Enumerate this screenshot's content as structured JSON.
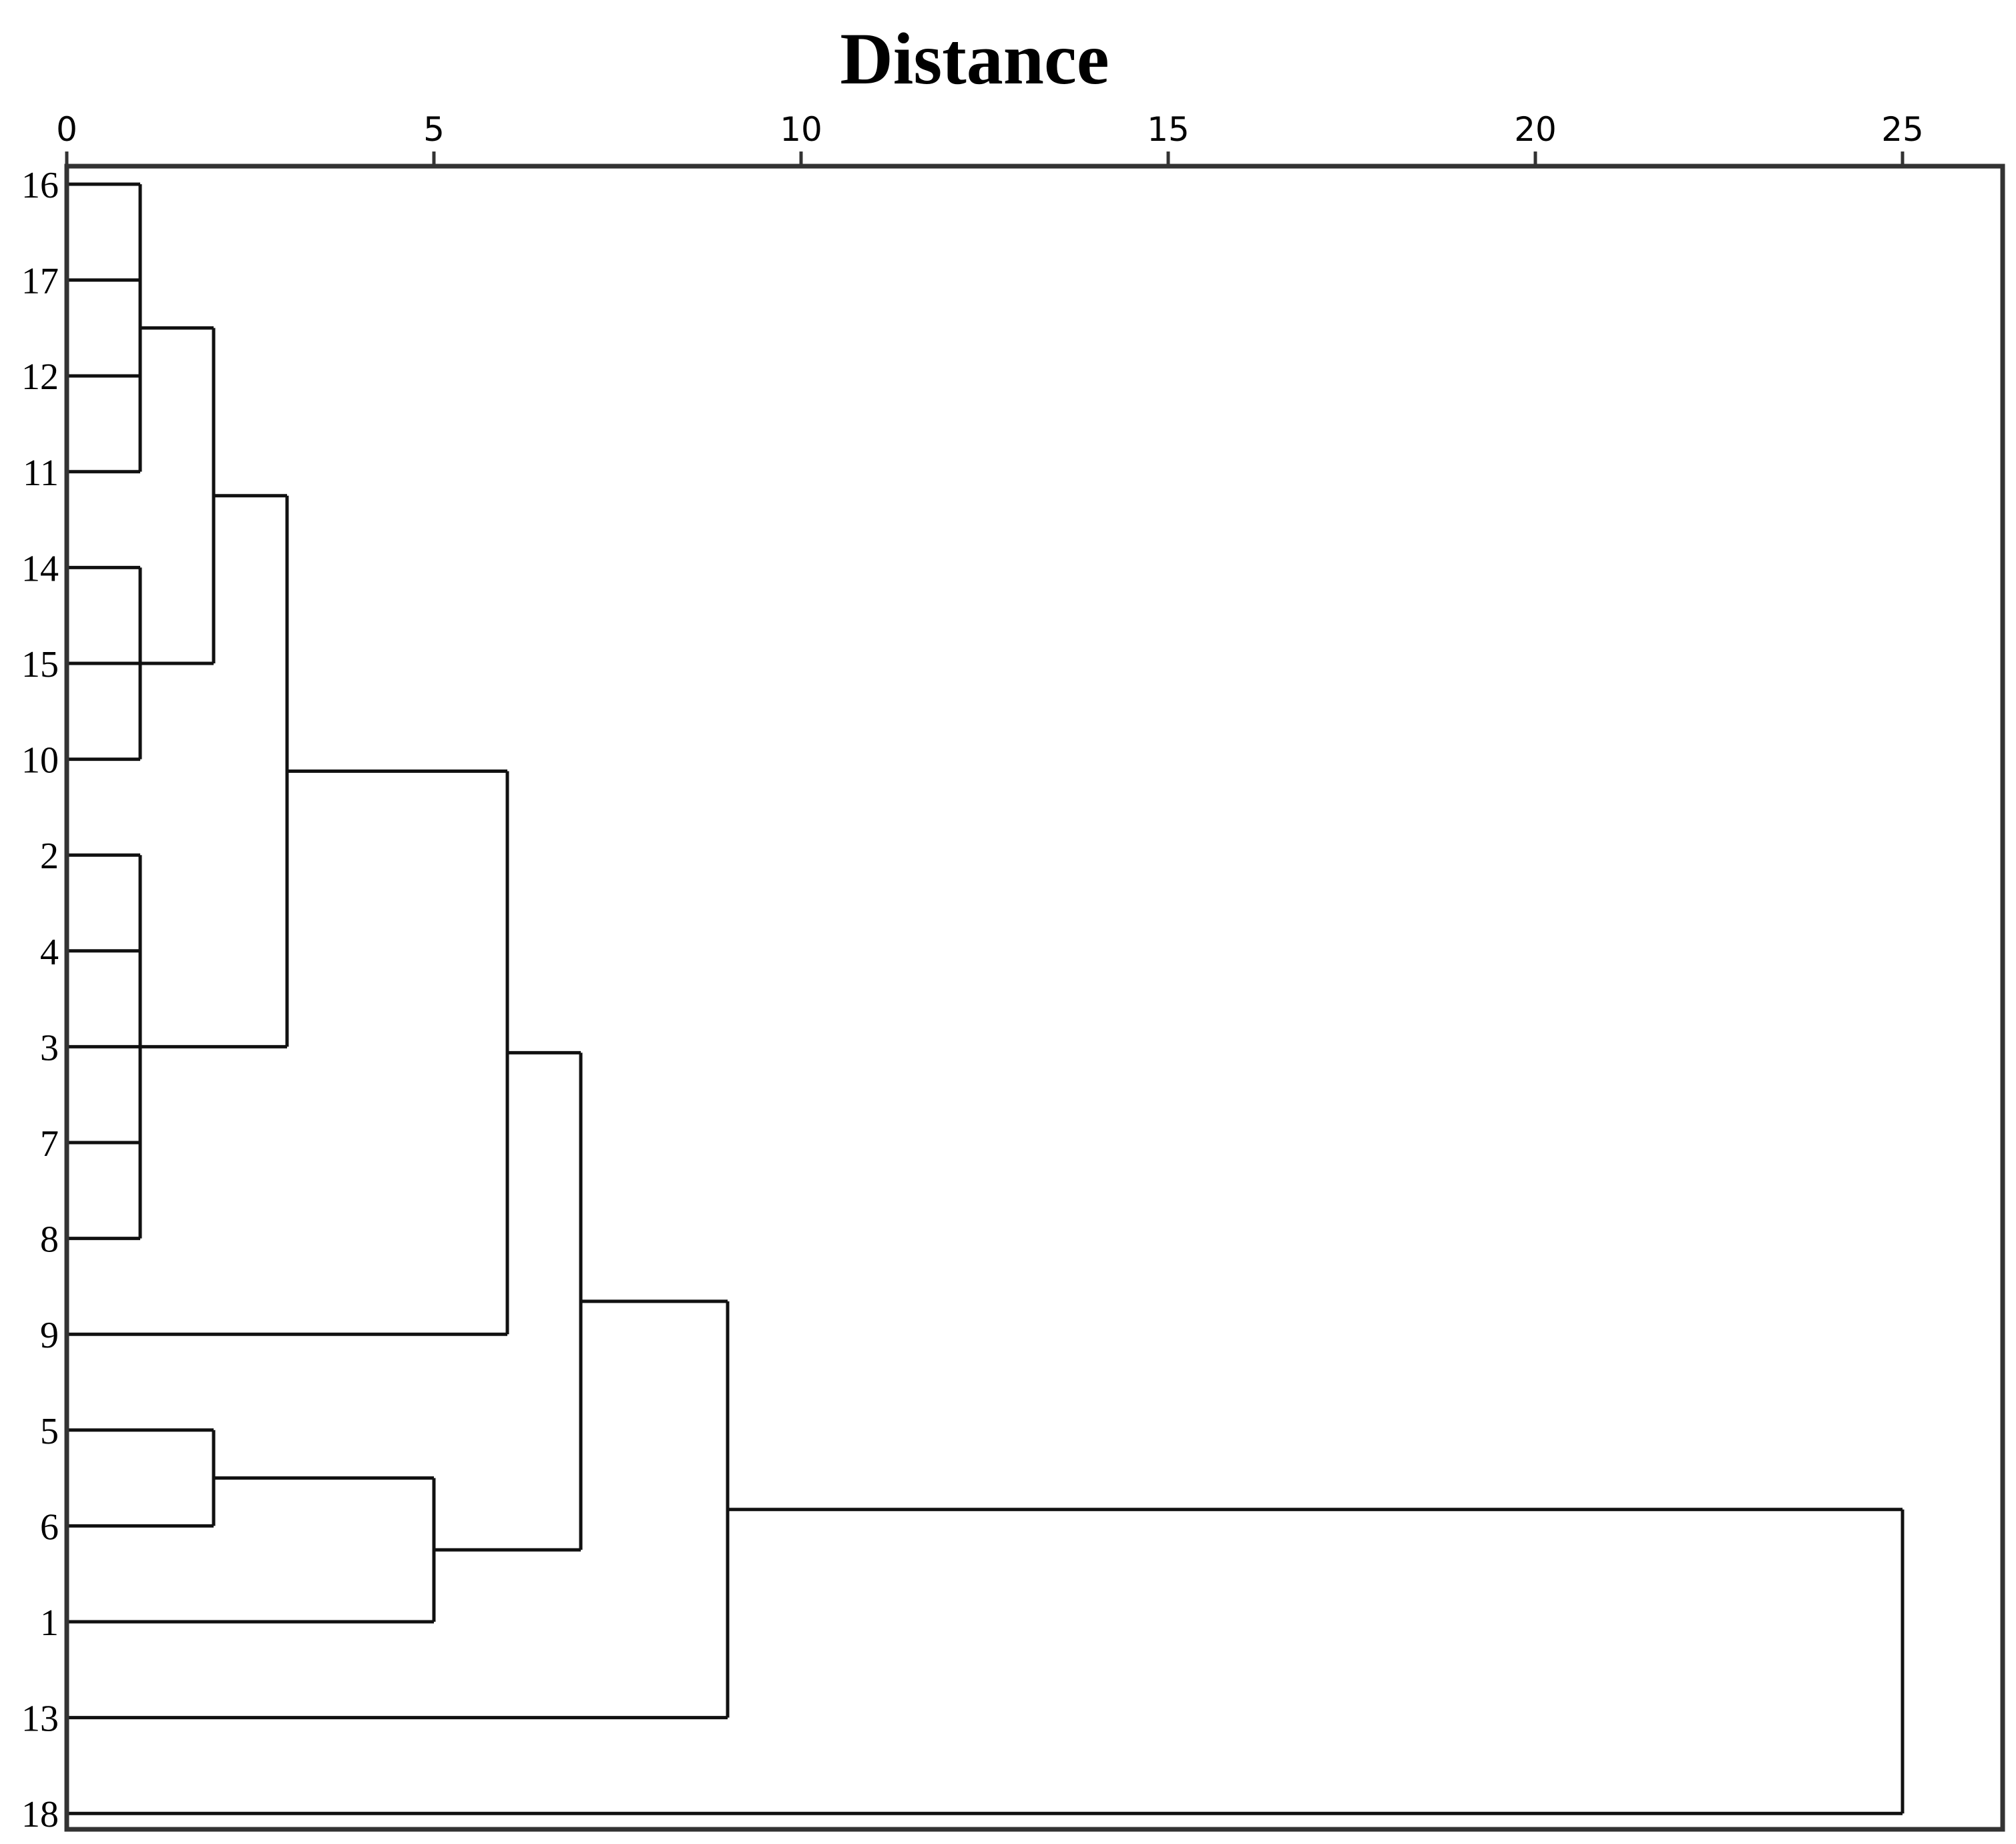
{
  "chart_data": {
    "type": "dendrogram",
    "title": "Distance",
    "x_axis": {
      "ticks": [
        0,
        5,
        10,
        15,
        20,
        25
      ],
      "range": [
        0,
        26.3
      ],
      "position": "top"
    },
    "leaves": [
      "16",
      "17",
      "12",
      "11",
      "14",
      "15",
      "10",
      "2",
      "4",
      "3",
      "7",
      "8",
      "9",
      "5",
      "6",
      "1",
      "13",
      "18"
    ],
    "merges": [
      {
        "id": "A",
        "members": [
          "16",
          "17",
          "12",
          "11"
        ],
        "distance": 1
      },
      {
        "id": "B",
        "members": [
          "14",
          "15",
          "10"
        ],
        "distance": 1
      },
      {
        "id": "C",
        "members": [
          "2",
          "4",
          "3",
          "7",
          "8"
        ],
        "distance": 1
      },
      {
        "id": "D",
        "members": [
          "5",
          "6"
        ],
        "distance": 2
      },
      {
        "id": "E",
        "members": [
          "A",
          "B"
        ],
        "distance": 2
      },
      {
        "id": "F",
        "members": [
          "E",
          "C"
        ],
        "distance": 3
      },
      {
        "id": "G",
        "members": [
          "D",
          "1"
        ],
        "distance": 5
      },
      {
        "id": "H",
        "members": [
          "F",
          "9"
        ],
        "distance": 6
      },
      {
        "id": "I",
        "members": [
          "H",
          "G"
        ],
        "distance": 7
      },
      {
        "id": "J",
        "members": [
          "I",
          "13"
        ],
        "distance": 9
      },
      {
        "id": "K",
        "members": [
          "J",
          "18"
        ],
        "distance": 25
      }
    ],
    "grid": false,
    "legend": "none"
  }
}
